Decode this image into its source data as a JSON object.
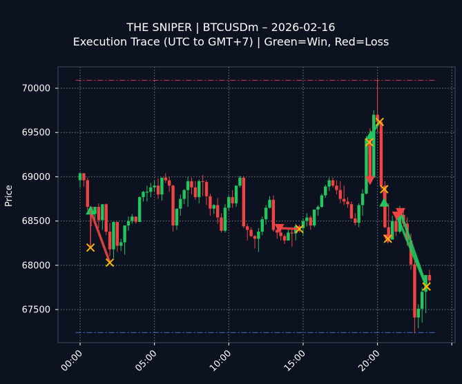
{
  "header": {
    "title": "THE SNIPER | BTCUSDm – 2026-02-16",
    "subtitle": "Execution Trace (UTC to GMT+7) | Green=Win, Red=Loss"
  },
  "colors": {
    "background": "#0c1220",
    "frame": "#3a4556",
    "grid": "#9aa3b0",
    "up": "#22c55e",
    "down": "#ef4444",
    "exit": "#f5b50a",
    "upper_line": "#c0394b",
    "lower_line": "#3b6fd4",
    "text": "#ffffff"
  },
  "chart_data": {
    "type": "candlestick",
    "title": "THE SNIPER | BTCUSDm – 2026-02-16",
    "subtitle": "Execution Trace (UTC to GMT+7) | Green=Win, Red=Loss",
    "xlabel": "",
    "ylabel": "Price",
    "ylim": [
      67100,
      70230
    ],
    "xlim_hours": [
      -1.45,
      25.3
    ],
    "yticks": [
      67500,
      68000,
      68500,
      69000,
      69500,
      70000
    ],
    "xticks": [
      {
        "h": 0,
        "label": "00:00"
      },
      {
        "h": 5,
        "label": "05:00"
      },
      {
        "h": 10,
        "label": "10:00"
      },
      {
        "h": 15,
        "label": "15:00"
      },
      {
        "h": 20,
        "label": "20:00"
      },
      {
        "h": 25,
        "label": ""
      }
    ],
    "grid": true,
    "candle_interval_minutes": 15,
    "reference_lines": [
      {
        "name": "upper",
        "price": 70090,
        "from_h": -0.3,
        "to_h": 24.0,
        "color": "#c0394b"
      },
      {
        "name": "lower",
        "price": 67240,
        "from_h": -0.3,
        "to_h": 24.0,
        "color": "#3b6fd4"
      }
    ],
    "candles": [
      [
        0.0,
        68960,
        69040,
        68880,
        69040
      ],
      [
        0.25,
        69040,
        69040,
        68890,
        68960
      ],
      [
        0.5,
        68960,
        68990,
        68620,
        68660
      ],
      [
        0.75,
        68660,
        68660,
        68440,
        68580
      ],
      [
        1.0,
        68580,
        68660,
        68490,
        68660
      ],
      [
        1.25,
        68660,
        68700,
        68420,
        68510
      ],
      [
        1.5,
        68510,
        68690,
        68400,
        68690
      ],
      [
        1.75,
        68690,
        68700,
        68340,
        68380
      ],
      [
        2.0,
        68380,
        68480,
        68100,
        68180
      ],
      [
        2.25,
        68180,
        68490,
        68080,
        68490
      ],
      [
        2.5,
        68490,
        68490,
        68150,
        68220
      ],
      [
        2.75,
        68220,
        68300,
        68160,
        68260
      ],
      [
        3.0,
        68260,
        68450,
        68120,
        68450
      ],
      [
        3.25,
        68450,
        68550,
        68390,
        68500
      ],
      [
        3.5,
        68500,
        68580,
        68470,
        68550
      ],
      [
        3.75,
        68550,
        68550,
        68470,
        68490
      ],
      [
        4.0,
        68490,
        68780,
        68490,
        68770
      ],
      [
        4.25,
        68770,
        68840,
        68720,
        68830
      ],
      [
        4.5,
        68830,
        68900,
        68720,
        68830
      ],
      [
        4.75,
        68830,
        68930,
        68770,
        68880
      ],
      [
        5.0,
        68880,
        68960,
        68830,
        68900
      ],
      [
        5.25,
        68900,
        68980,
        68750,
        68800
      ],
      [
        5.5,
        68800,
        68990,
        68730,
        68990
      ],
      [
        5.75,
        68990,
        69040,
        68930,
        68960
      ],
      [
        6.0,
        68960,
        69000,
        68830,
        68900
      ],
      [
        6.25,
        68900,
        68910,
        68380,
        68450
      ],
      [
        6.5,
        68450,
        68640,
        68400,
        68640
      ],
      [
        6.75,
        68640,
        68800,
        68560,
        68750
      ],
      [
        7.0,
        68750,
        68860,
        68690,
        68850
      ],
      [
        7.25,
        68850,
        69000,
        68660,
        68950
      ],
      [
        7.5,
        68950,
        68990,
        68800,
        68880
      ],
      [
        7.75,
        68880,
        68950,
        68740,
        68770
      ],
      [
        8.0,
        68770,
        68970,
        68700,
        68950
      ],
      [
        8.25,
        68950,
        69020,
        68780,
        68940
      ],
      [
        8.5,
        68940,
        68960,
        68680,
        68780
      ],
      [
        8.75,
        68780,
        68810,
        68560,
        68640
      ],
      [
        9.0,
        68640,
        68690,
        68580,
        68680
      ],
      [
        9.25,
        68680,
        68760,
        68470,
        68540
      ],
      [
        9.5,
        68540,
        68590,
        68370,
        68390
      ],
      [
        9.75,
        68390,
        68690,
        68370,
        68650
      ],
      [
        10.0,
        68650,
        68790,
        68620,
        68770
      ],
      [
        10.25,
        68770,
        68850,
        68650,
        68700
      ],
      [
        10.5,
        68700,
        68900,
        68660,
        68900
      ],
      [
        10.75,
        68900,
        69010,
        68880,
        68990
      ],
      [
        11.0,
        68990,
        69010,
        68420,
        68440
      ],
      [
        11.25,
        68440,
        68470,
        68280,
        68400
      ],
      [
        11.5,
        68400,
        68430,
        68320,
        68330
      ],
      [
        11.75,
        68330,
        68340,
        68190,
        68300
      ],
      [
        12.0,
        68300,
        68420,
        68150,
        68380
      ],
      [
        12.25,
        68380,
        68550,
        68340,
        68520
      ],
      [
        12.5,
        68520,
        68680,
        68460,
        68650
      ],
      [
        12.75,
        68650,
        68780,
        68640,
        68740
      ],
      [
        13.0,
        68740,
        68790,
        68380,
        68400
      ],
      [
        13.25,
        68400,
        68410,
        68300,
        68370
      ],
      [
        13.5,
        68370,
        68420,
        68280,
        68330
      ],
      [
        13.75,
        68330,
        68350,
        68240,
        68280
      ],
      [
        14.0,
        68280,
        68400,
        68290,
        68370
      ],
      [
        14.25,
        68370,
        68410,
        68210,
        68360
      ],
      [
        14.5,
        68360,
        68470,
        68280,
        68440
      ],
      [
        14.75,
        68440,
        68460,
        68370,
        68420
      ],
      [
        15.0,
        68420,
        68530,
        68330,
        68500
      ],
      [
        15.25,
        68500,
        68590,
        68440,
        68540
      ],
      [
        15.5,
        68540,
        68560,
        68400,
        68450
      ],
      [
        15.75,
        68450,
        68630,
        68430,
        68630
      ],
      [
        16.0,
        68630,
        68680,
        68560,
        68660
      ],
      [
        16.25,
        68660,
        68810,
        68650,
        68790
      ],
      [
        16.5,
        68790,
        68910,
        68760,
        68890
      ],
      [
        16.75,
        68890,
        68990,
        68840,
        68960
      ],
      [
        17.0,
        68960,
        68990,
        68880,
        68900
      ],
      [
        17.25,
        68900,
        68960,
        68800,
        68850
      ],
      [
        17.5,
        68850,
        68950,
        68700,
        68750
      ],
      [
        17.75,
        68750,
        68900,
        68680,
        68720
      ],
      [
        18.0,
        68720,
        68770,
        68650,
        68690
      ],
      [
        18.25,
        68690,
        68720,
        68520,
        68530
      ],
      [
        18.5,
        68530,
        68590,
        68450,
        68480
      ],
      [
        18.75,
        68480,
        68700,
        68430,
        68680
      ],
      [
        19.0,
        68680,
        68860,
        68560,
        68810
      ],
      [
        19.25,
        68810,
        69460,
        68800,
        69430
      ],
      [
        19.5,
        69430,
        69550,
        68940,
        68990
      ],
      [
        19.75,
        68990,
        69750,
        68990,
        69700
      ],
      [
        20.0,
        69700,
        70100,
        69500,
        69620
      ],
      [
        20.25,
        69620,
        69650,
        68850,
        68900
      ],
      [
        20.5,
        68900,
        68950,
        68420,
        68430
      ],
      [
        20.75,
        68430,
        68700,
        68270,
        68290
      ],
      [
        21.0,
        68290,
        68560,
        68310,
        68500
      ],
      [
        21.25,
        68500,
        68560,
        68330,
        68380
      ],
      [
        21.5,
        68380,
        68670,
        68360,
        68570
      ],
      [
        21.75,
        68570,
        68620,
        68430,
        68470
      ],
      [
        22.0,
        68470,
        68540,
        68220,
        68280
      ],
      [
        22.25,
        68280,
        68360,
        67950,
        68010
      ],
      [
        22.5,
        68010,
        68050,
        67230,
        67410
      ],
      [
        22.75,
        67410,
        67560,
        67290,
        67510
      ],
      [
        23.0,
        67510,
        67750,
        67350,
        67700
      ],
      [
        23.25,
        67700,
        67840,
        67460,
        67890
      ],
      [
        23.5,
        67890,
        67950,
        67800,
        67830
      ]
    ],
    "trades": [
      {
        "side": "buy",
        "result": "loss",
        "entry_h": 0.7,
        "entry_price": 68620,
        "exit_h": 2.0,
        "exit_price": 68030
      },
      {
        "side": "sell",
        "result": "loss",
        "entry_h": 13.4,
        "entry_price": 68420,
        "exit_h": 14.75,
        "exit_price": 68410
      },
      {
        "side": "buy",
        "result": "win",
        "entry_h": 19.55,
        "entry_price": 69470,
        "exit_h": 20.15,
        "exit_price": 69620
      },
      {
        "side": "sell",
        "result": "loss",
        "entry_h": 19.5,
        "entry_price": 68960,
        "exit_h": 19.45,
        "exit_price": 69390
      },
      {
        "side": "buy",
        "result": "loss",
        "entry_h": 20.45,
        "entry_price": 68710,
        "exit_h": 20.45,
        "exit_price": 68860
      },
      {
        "side": "sell",
        "result": "win",
        "entry_h": 21.55,
        "entry_price": 68600,
        "exit_h": 23.3,
        "exit_price": 67760
      },
      {
        "side": "sell",
        "result": "win",
        "entry_h": 21.3,
        "entry_price": 68560,
        "exit_h": 23.3,
        "exit_price": 67760
      },
      {
        "side": "sell",
        "result": "loss",
        "entry_h": 20.7,
        "entry_price": 68300,
        "exit_h": 20.7,
        "exit_price": 68300
      }
    ],
    "exits_extra": [
      {
        "h": 0.7,
        "price": 68200
      }
    ]
  }
}
